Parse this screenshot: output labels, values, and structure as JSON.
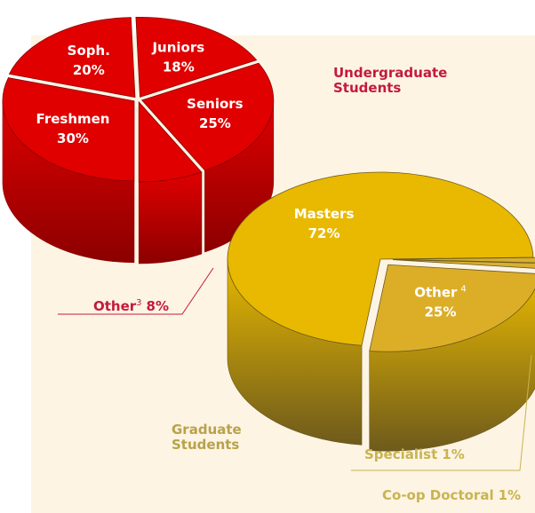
{
  "chart_data": [
    {
      "type": "pie",
      "title": "Undergraduate Students",
      "categories": [
        "Freshmen",
        "Soph.",
        "Juniors",
        "Seniors",
        "Other"
      ],
      "superscripts": [
        null,
        null,
        null,
        null,
        "3"
      ],
      "values": [
        30,
        20,
        18,
        25,
        8
      ],
      "value_labels": [
        "30%",
        "20%",
        "18%",
        "25%",
        "8%"
      ],
      "colors": [
        "#e00000",
        "#e00000",
        "#e00000",
        "#e00000",
        "#e00000"
      ],
      "side_color": "#8c0000",
      "title_color": "#c41a3c"
    },
    {
      "type": "pie",
      "title": "Graduate Students",
      "categories": [
        "Masters",
        "Specialist",
        "Co-op Doctoral",
        "Other"
      ],
      "superscripts": [
        null,
        null,
        null,
        "4"
      ],
      "values": [
        72,
        1,
        1,
        25
      ],
      "value_labels": [
        "72%",
        "1%",
        "1%",
        "25%"
      ],
      "colors": [
        "#e8b900",
        "#d8b030",
        "#d8b030",
        "#dcae28"
      ],
      "side_color": "#6e5a1c",
      "title_color": "#b8a24a"
    }
  ]
}
